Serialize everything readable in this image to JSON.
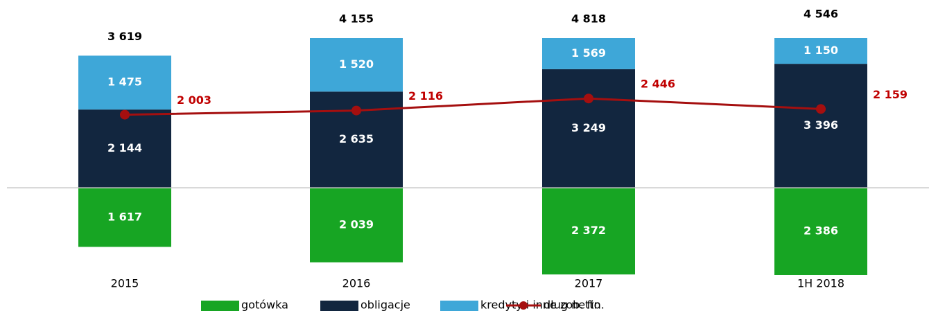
{
  "chart_data": {
    "type": "bar",
    "categories": [
      "2015",
      "2016",
      "2017",
      "1H 2018"
    ],
    "ylim": [
      -2500,
      4100
    ],
    "series": [
      {
        "name": "gotówka",
        "color": "#17a523",
        "below_axis": true,
        "values": [
          1617,
          2039,
          2372,
          2386
        ],
        "value_labels": [
          "1 617",
          "2 039",
          "2 372",
          "2 386"
        ]
      },
      {
        "name": "obligacje",
        "color": "#12263f",
        "values": [
          2144,
          2635,
          3249,
          3396
        ],
        "value_labels": [
          "2 144",
          "2 635",
          "3 249",
          "3 396"
        ]
      },
      {
        "name": "kredyty  i inne zob. fin.",
        "color": "#3ea7d8",
        "values": [
          1475,
          1520,
          1569,
          1150
        ],
        "value_labels": [
          "1 475",
          "1 520",
          "1 569",
          "1 150"
        ]
      },
      {
        "name": "dług netto",
        "type": "line",
        "color": "#a50f0f",
        "values": [
          2003,
          2116,
          2446,
          2159
        ],
        "value_labels": [
          "2 003",
          "2 116",
          "2 446",
          "2 159"
        ]
      }
    ],
    "totals": [
      3619,
      4155,
      4818,
      4546
    ],
    "total_labels": [
      "3 619",
      "4 155",
      "4 818",
      "4 546"
    ]
  }
}
